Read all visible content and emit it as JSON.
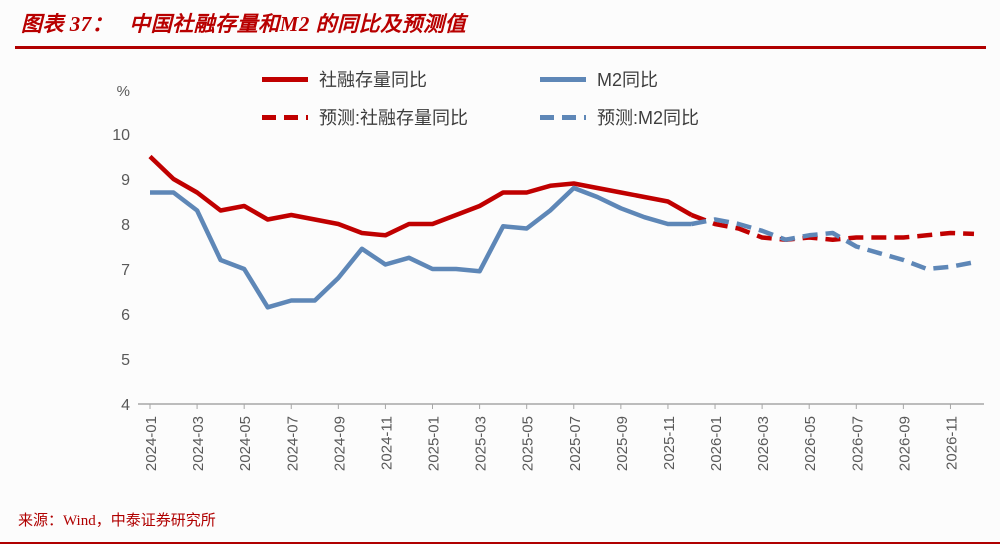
{
  "header": {
    "figure_label": "图表 37：",
    "title": "中国社融存量和M2 的同比及预测值"
  },
  "footer": {
    "source": "来源：Wind，中泰证券研究所"
  },
  "colors": {
    "accent_red": "#b80000",
    "line_red": "#c00000",
    "line_blue": "#5e87b7",
    "axis_text": "#595959",
    "axis_line": "#a6a6a6"
  },
  "chart_data": {
    "type": "line",
    "title": "中国社融存量和M2 的同比及预测值",
    "y_unit": "%",
    "ylim": [
      4,
      10
    ],
    "y_ticks": [
      10,
      9,
      8,
      7,
      6,
      5,
      4
    ],
    "grid": false,
    "legend_position": "top",
    "x_tick_every": 2,
    "months": [
      "2024-01",
      "2024-02",
      "2024-03",
      "2024-04",
      "2024-05",
      "2024-06",
      "2024-07",
      "2024-08",
      "2024-09",
      "2024-10",
      "2024-11",
      "2024-12",
      "2025-01",
      "2025-02",
      "2025-03",
      "2025-04",
      "2025-05",
      "2025-06",
      "2025-07",
      "2025-08",
      "2025-09",
      "2025-10",
      "2025-11",
      "2025-12",
      "2026-01",
      "2026-02",
      "2026-03",
      "2026-04",
      "2026-05",
      "2026-06",
      "2026-07",
      "2026-08",
      "2026-09",
      "2026-10",
      "2026-11",
      "2026-12"
    ],
    "series": [
      {
        "name": "社融存量同比",
        "color": "#c00000",
        "style": "solid",
        "start_index": 0,
        "values": [
          9.5,
          9.0,
          8.7,
          8.3,
          8.4,
          8.1,
          8.2,
          8.1,
          8.0,
          7.8,
          7.75,
          8.0,
          8.0,
          8.2,
          8.4,
          8.7,
          8.7,
          8.85,
          8.9,
          8.8,
          8.7,
          8.6,
          8.5,
          8.2
        ]
      },
      {
        "name": "M2同比",
        "color": "#5e87b7",
        "style": "solid",
        "start_index": 0,
        "values": [
          8.7,
          8.7,
          8.3,
          7.2,
          7.0,
          6.15,
          6.3,
          6.3,
          6.8,
          7.45,
          7.1,
          7.25,
          7.0,
          7.0,
          6.95,
          7.95,
          7.9,
          8.3,
          8.8,
          8.6,
          8.35,
          8.15,
          8.0,
          8.0
        ]
      },
      {
        "name": "预测:社融存量同比",
        "color": "#c00000",
        "style": "dashed",
        "start_index": 23,
        "values": [
          8.2,
          8.0,
          7.9,
          7.7,
          7.65,
          7.7,
          7.65,
          7.7,
          7.7,
          7.7,
          7.75,
          7.8,
          7.78
        ]
      },
      {
        "name": "预测:M2同比",
        "color": "#5e87b7",
        "style": "dashed",
        "start_index": 23,
        "values": [
          8.0,
          8.1,
          8.0,
          7.85,
          7.65,
          7.75,
          7.8,
          7.5,
          7.35,
          7.2,
          7.0,
          7.05,
          7.15
        ]
      }
    ]
  }
}
